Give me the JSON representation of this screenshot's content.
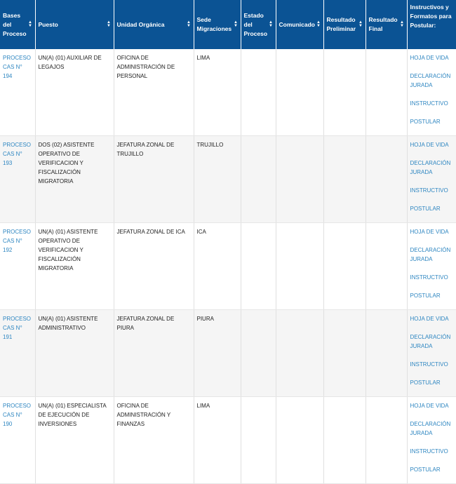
{
  "headers": [
    {
      "label": "Bases del Proceso",
      "sortable": true
    },
    {
      "label": "Puesto",
      "sortable": true
    },
    {
      "label": "Unidad Orgánica",
      "sortable": true
    },
    {
      "label": "Sede Migraciones",
      "sortable": true
    },
    {
      "label": "Estado del Proceso",
      "sortable": true
    },
    {
      "label": "Comunicado",
      "sortable": true
    },
    {
      "label": "Resultado Preliminar",
      "sortable": true
    },
    {
      "label": "Resultado Final",
      "sortable": true
    },
    {
      "label": "Instructivos y Formatos para Postular:",
      "sortable": false
    }
  ],
  "doc_links": [
    "HOJA DE VIDA",
    "DECLARACIÓN JURADA",
    "INSTRUCTIVO",
    "POSTULAR"
  ],
  "rows": [
    {
      "proceso": "PROCESO CAS N° 194",
      "puesto": "UN(A) (01) AUXILIAR DE LEGAJOS",
      "unidad": "OFICINA DE ADMINISTRACIÓN DE PERSONAL",
      "sede": "LIMA",
      "estado": "",
      "comunicado": "",
      "preliminar": "",
      "final": ""
    },
    {
      "proceso": "PROCESO CAS N° 193",
      "puesto": "DOS (02) ASISTENTE OPERATIVO DE VERIFICACION Y FISCALIZACIÓN MIGRATORIA",
      "unidad": "JEFATURA ZONAL DE TRUJILLO",
      "sede": "TRUJILLO",
      "estado": "",
      "comunicado": "",
      "preliminar": "",
      "final": ""
    },
    {
      "proceso": "PROCESO CAS N° 192",
      "puesto": "UN(A) (01) ASISTENTE OPERATIVO DE VERIFICACION Y FISCALIZACIÓN MIGRATORIA",
      "unidad": "JEFATURA ZONAL DE ICA",
      "sede": "ICA",
      "estado": "",
      "comunicado": "",
      "preliminar": "",
      "final": ""
    },
    {
      "proceso": "PROCESO CAS N° 191",
      "puesto": "UN(A) (01) ASISTENTE ADMINISTRATIVO",
      "unidad": "JEFATURA ZONAL DE PIURA",
      "sede": "PIURA",
      "estado": "",
      "comunicado": "",
      "preliminar": "",
      "final": ""
    },
    {
      "proceso": "PROCESO CAS N° 190",
      "puesto": "UN(A) (01) ESPECIALISTA DE EJECUCIÓN DE INVERSIONES",
      "unidad": "OFICINA DE ADMINISTRACIÓN Y FINANZAS",
      "sede": "LIMA",
      "estado": "",
      "comunicado": "",
      "preliminar": "",
      "final": ""
    }
  ],
  "icons": {
    "sort": "sort-arrows-icon"
  },
  "colors": {
    "header_bg": "#0b5394",
    "link": "#2e86c1",
    "stripe": "#f5f5f5"
  }
}
